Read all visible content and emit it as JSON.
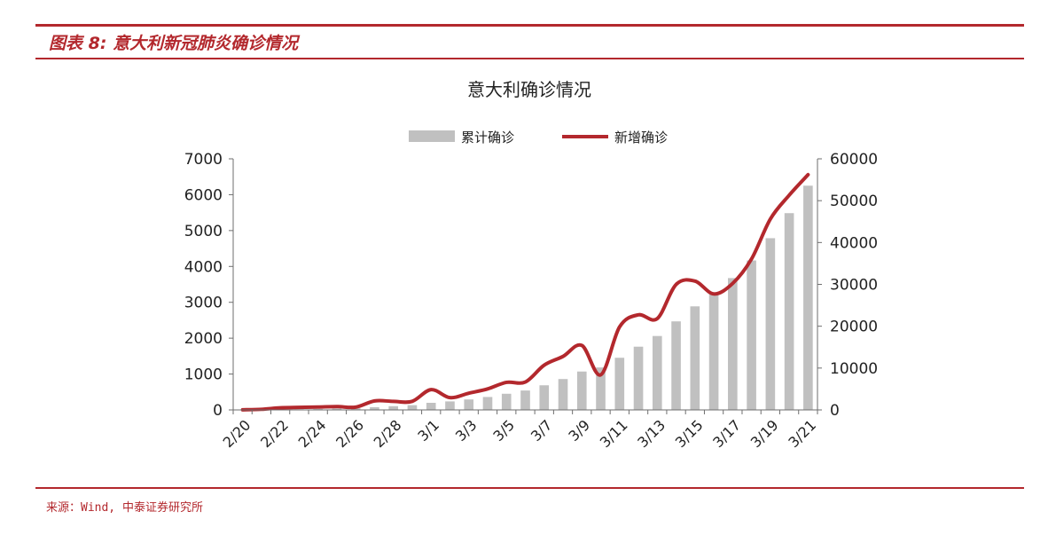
{
  "figure": {
    "label": "图表 8:",
    "caption": "意大利新冠肺炎确诊情况",
    "source": "来源：Wind, 中泰证券研究所"
  },
  "colors": {
    "accent": "#b3282d",
    "bars": "#c0c0c0",
    "line": "#b3282d"
  },
  "chart_data": {
    "type": "bar",
    "title": "意大利确诊情况",
    "legend_position": "top-center",
    "grid": false,
    "categories": [
      "2/20",
      "2/21",
      "2/22",
      "2/23",
      "2/24",
      "2/25",
      "2/26",
      "2/27",
      "2/28",
      "2/29",
      "3/1",
      "3/2",
      "3/3",
      "3/4",
      "3/5",
      "3/6",
      "3/7",
      "3/8",
      "3/9",
      "3/10",
      "3/11",
      "3/12",
      "3/13",
      "3/14",
      "3/15",
      "3/16",
      "3/17",
      "3/18",
      "3/19",
      "3/20",
      "3/21"
    ],
    "tick_labels": [
      "2/20",
      "2/22",
      "2/24",
      "2/26",
      "2/28",
      "3/1",
      "3/3",
      "3/5",
      "3/7",
      "3/9",
      "3/11",
      "3/13",
      "3/15",
      "3/17",
      "3/19",
      "3/21"
    ],
    "left_axis": {
      "min": 0,
      "max": 7000,
      "ticks": [
        "0",
        "1000",
        "2000",
        "3000",
        "4000",
        "5000",
        "6000",
        "7000"
      ]
    },
    "right_axis": {
      "min": 0,
      "max": 60000,
      "ticks": [
        "0",
        "10000",
        "20000",
        "30000",
        "40000",
        "50000",
        "60000"
      ]
    },
    "series": [
      {
        "name": "累计确诊",
        "type": "bar",
        "axis": "right",
        "values": [
          3,
          20,
          79,
          150,
          229,
          322,
          400,
          650,
          888,
          1128,
          1694,
          2036,
          2502,
          3089,
          3858,
          4636,
          5883,
          7375,
          9172,
          10149,
          12462,
          15113,
          17660,
          21157,
          24747,
          27980,
          31506,
          35713,
          41035,
          47021,
          53578
        ]
      },
      {
        "name": "新增确诊",
        "type": "line",
        "axis": "left",
        "values": [
          3,
          17,
          59,
          71,
          79,
          93,
          78,
          250,
          238,
          240,
          566,
          342,
          466,
          587,
          769,
          778,
          1247,
          1492,
          1797,
          977,
          2313,
          2651,
          2547,
          3497,
          3590,
          3233,
          3526,
          4207,
          5322,
          5986,
          6557
        ]
      }
    ]
  }
}
